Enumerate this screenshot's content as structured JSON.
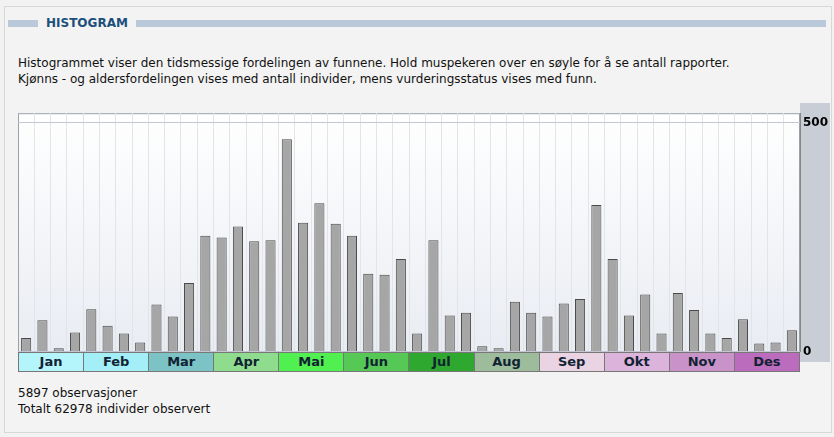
{
  "header": {
    "title": "HISTOGRAM"
  },
  "description": [
    "Histogrammet viser den tidsmessige fordelingen av funnene. Hold muspekeren over en søyle for å se antall rapporter.",
    "Kjønns - og aldersfordelingen vises med antall individer, mens vurderingsstatus vises med funn."
  ],
  "chart_data": {
    "type": "bar",
    "categories": [
      null,
      null,
      null,
      null,
      null,
      null,
      null,
      null,
      null,
      null,
      null,
      null,
      null,
      null,
      null,
      null,
      null,
      null,
      null,
      null,
      null,
      null,
      null,
      null,
      null,
      null,
      null,
      null,
      null,
      null,
      null,
      null,
      null,
      null,
      null,
      null,
      null,
      null,
      null,
      null,
      null,
      null,
      null,
      null,
      null,
      null,
      null,
      null
    ],
    "values": [
      30,
      69,
      8,
      42,
      93,
      57,
      40,
      20,
      103,
      77,
      150,
      253,
      249,
      273,
      241,
      243,
      463,
      281,
      324,
      279,
      253,
      170,
      168,
      202,
      40,
      243,
      79,
      85,
      12,
      8,
      109,
      85,
      77,
      105,
      115,
      320,
      202,
      79,
      125,
      40,
      128,
      91,
      40,
      30,
      71,
      18,
      20,
      47
    ],
    "color": "#a6a6a6",
    "ylim": [
      0,
      520
    ],
    "yticks": [
      0,
      500
    ],
    "grid": true,
    "tick_labels": "y"
  },
  "month_bands": [
    {
      "label": "Jan",
      "color": "#b4f4fb"
    },
    {
      "label": "Feb",
      "color": "#a4eef8"
    },
    {
      "label": "Mar",
      "color": "#7cc3c6"
    },
    {
      "label": "Apr",
      "color": "#8fdc8f"
    },
    {
      "label": "Mai",
      "color": "#4ff04f"
    },
    {
      "label": "Jun",
      "color": "#55c855"
    },
    {
      "label": "Jul",
      "color": "#2fa82f"
    },
    {
      "label": "Aug",
      "color": "#9cbc9c"
    },
    {
      "label": "Sep",
      "color": "#ead3e3"
    },
    {
      "label": "Okt",
      "color": "#dbb3db"
    },
    {
      "label": "Nov",
      "color": "#c993c9"
    },
    {
      "label": "Des",
      "color": "#bc6cbc"
    }
  ],
  "footer": [
    "5897 observasjoner",
    "Totalt 62978 individer observert"
  ]
}
